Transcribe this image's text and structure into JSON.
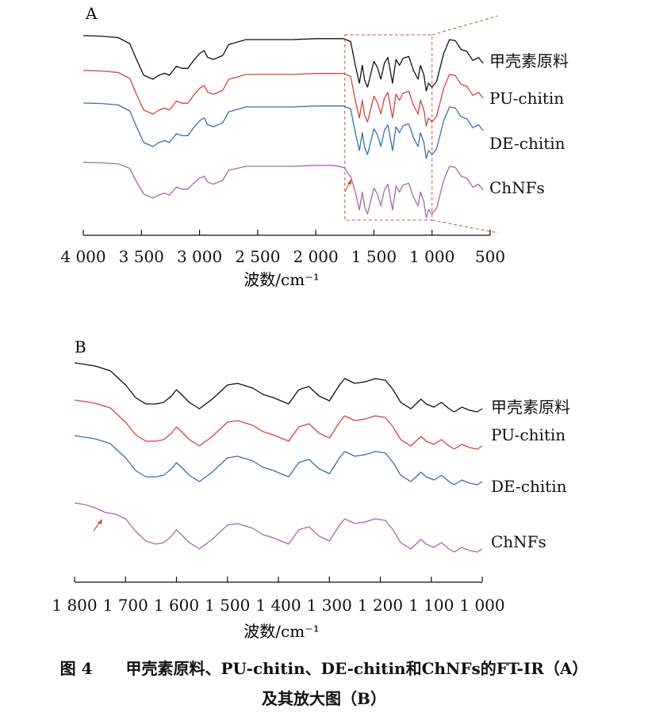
{
  "panels": [
    {
      "label": "A",
      "xlabel": "波数/cm⁻¹",
      "ticks": [
        "4 000",
        "3 500",
        "3 000",
        "2 500",
        "2 000",
        "1 500",
        "1 000",
        "500"
      ],
      "zoom_box": [
        "1 750",
        "1 000"
      ]
    },
    {
      "label": "B",
      "xlabel": "波数/cm⁻¹",
      "ticks": [
        "1 800",
        "1 700",
        "1 600",
        "1 500",
        "1 400",
        "1 300",
        "1 200",
        "1 100",
        "1 000"
      ]
    }
  ],
  "caption": {
    "figure_no": "图 4",
    "line1": "甲壳素原料、PU-chitin、DE-chitin和ChNFs的FT-IR（A）",
    "line2": "及其放大图（B）"
  },
  "colors": {
    "black": "#111111",
    "red": "#d9423c",
    "blue": "#3a6fad",
    "purple": "#a967b3",
    "box": "#e0473f"
  },
  "chart_data": [
    {
      "type": "line",
      "title": "A",
      "xlabel": "波数/cm⁻¹",
      "ylabel": "",
      "xlim": [
        4000,
        500
      ],
      "x_reversed": true,
      "y_axis_shown": false,
      "x_ticks": [
        4000,
        3500,
        3000,
        2500,
        2000,
        1500,
        1000,
        500
      ],
      "highlight_region": [
        1750,
        1000
      ],
      "series": [
        {
          "name": "甲壳素原料",
          "color": "#111111",
          "x": [
            4000,
            3850,
            3700,
            3600,
            3550,
            3480,
            3400,
            3350,
            3300,
            3260,
            3200,
            3150,
            3100,
            3050,
            3000,
            2960,
            2930,
            2880,
            2800,
            2750,
            2600,
            2400,
            2200,
            2000,
            1850,
            1760,
            1700,
            1660,
            1625,
            1600,
            1580,
            1555,
            1500,
            1470,
            1440,
            1410,
            1380,
            1340,
            1310,
            1280,
            1250,
            1200,
            1160,
            1120,
            1100,
            1070,
            1050,
            1030,
            1000,
            960,
            900,
            850,
            800,
            750,
            700,
            650,
            600,
            560
          ],
          "y": [
            0,
            0.5,
            2,
            8,
            22,
            40,
            44,
            40,
            38,
            40,
            31,
            33,
            33,
            25,
            18,
            15,
            22,
            24,
            20,
            9,
            4,
            4,
            4,
            3,
            3,
            3,
            6,
            30,
            48,
            30,
            45,
            52,
            26,
            32,
            44,
            28,
            22,
            48,
            24,
            30,
            23,
            21,
            35,
            44,
            30,
            40,
            56,
            48,
            52,
            46,
            18,
            4,
            5,
            14,
            16,
            25,
            22,
            28
          ]
        },
        {
          "name": "PU-chitin",
          "color": "#d9423c",
          "x": [
            4000,
            3850,
            3700,
            3600,
            3550,
            3480,
            3400,
            3350,
            3300,
            3260,
            3200,
            3150,
            3100,
            3050,
            3000,
            2960,
            2930,
            2880,
            2800,
            2750,
            2600,
            2400,
            2200,
            2000,
            1850,
            1760,
            1700,
            1660,
            1625,
            1600,
            1580,
            1555,
            1500,
            1470,
            1440,
            1410,
            1380,
            1340,
            1310,
            1280,
            1250,
            1200,
            1160,
            1120,
            1100,
            1070,
            1050,
            1030,
            1000,
            960,
            900,
            850,
            800,
            750,
            700,
            650,
            600,
            560
          ],
          "y": [
            0,
            0.5,
            2,
            8,
            22,
            40,
            44,
            40,
            38,
            40,
            31,
            33,
            33,
            25,
            18,
            15,
            22,
            24,
            20,
            9,
            4,
            4,
            4,
            3,
            3,
            3,
            6,
            30,
            48,
            30,
            45,
            52,
            26,
            32,
            44,
            28,
            22,
            48,
            24,
            30,
            23,
            21,
            35,
            44,
            30,
            40,
            56,
            48,
            52,
            46,
            18,
            4,
            5,
            14,
            16,
            25,
            22,
            28
          ]
        },
        {
          "name": "DE-chitin",
          "color": "#3a6fad",
          "x": [
            4000,
            3850,
            3700,
            3600,
            3550,
            3480,
            3400,
            3350,
            3300,
            3260,
            3200,
            3150,
            3100,
            3050,
            3000,
            2960,
            2930,
            2880,
            2800,
            2750,
            2600,
            2400,
            2200,
            2000,
            1850,
            1760,
            1700,
            1660,
            1625,
            1600,
            1580,
            1555,
            1500,
            1470,
            1440,
            1410,
            1380,
            1340,
            1310,
            1280,
            1250,
            1200,
            1160,
            1120,
            1100,
            1070,
            1050,
            1030,
            1000,
            960,
            900,
            850,
            800,
            750,
            700,
            650,
            600,
            560
          ],
          "y": [
            0,
            0.5,
            2,
            8,
            22,
            40,
            44,
            40,
            38,
            40,
            31,
            33,
            33,
            25,
            18,
            15,
            22,
            24,
            20,
            9,
            4,
            4,
            4,
            3,
            3,
            3,
            6,
            30,
            48,
            30,
            45,
            52,
            26,
            32,
            44,
            28,
            22,
            48,
            24,
            30,
            23,
            21,
            35,
            44,
            30,
            40,
            56,
            48,
            52,
            46,
            18,
            4,
            5,
            14,
            16,
            25,
            22,
            28
          ]
        },
        {
          "name": "ChNFs",
          "color": "#a967b3",
          "x": [
            4000,
            3850,
            3700,
            3600,
            3550,
            3480,
            3400,
            3350,
            3300,
            3260,
            3200,
            3150,
            3100,
            3050,
            3000,
            2960,
            2930,
            2880,
            2800,
            2750,
            2600,
            2400,
            2200,
            2000,
            1850,
            1760,
            1740,
            1720,
            1700,
            1660,
            1625,
            1600,
            1580,
            1555,
            1500,
            1470,
            1440,
            1410,
            1380,
            1340,
            1310,
            1280,
            1250,
            1200,
            1160,
            1120,
            1100,
            1070,
            1050,
            1030,
            1000,
            960,
            900,
            850,
            800,
            750,
            700,
            650,
            600,
            560
          ],
          "y": [
            0,
            0.5,
            1.5,
            6,
            18,
            32,
            36,
            33,
            31,
            33,
            25,
            27,
            27,
            21,
            16,
            14,
            20,
            22,
            18,
            8,
            4,
            4,
            4,
            3,
            3,
            5,
            8,
            12,
            14,
            30,
            48,
            30,
            45,
            52,
            26,
            32,
            44,
            28,
            22,
            48,
            24,
            30,
            23,
            21,
            35,
            44,
            30,
            40,
            56,
            48,
            52,
            46,
            18,
            4,
            5,
            14,
            16,
            25,
            22,
            28
          ]
        }
      ]
    },
    {
      "type": "line",
      "title": "B",
      "xlabel": "波数/cm⁻¹",
      "ylabel": "",
      "xlim": [
        1800,
        1000
      ],
      "x_reversed": true,
      "y_axis_shown": false,
      "x_ticks": [
        1800,
        1700,
        1600,
        1500,
        1400,
        1300,
        1200,
        1100,
        1000
      ],
      "series": [
        {
          "name": "甲壳素原料",
          "color": "#111111",
          "x": [
            1800,
            1760,
            1730,
            1700,
            1680,
            1660,
            1640,
            1625,
            1610,
            1600,
            1590,
            1575,
            1555,
            1530,
            1500,
            1480,
            1450,
            1430,
            1410,
            1380,
            1360,
            1340,
            1320,
            1300,
            1280,
            1270,
            1250,
            1230,
            1210,
            1190,
            1175,
            1160,
            1140,
            1120,
            1110,
            1095,
            1080,
            1065,
            1055,
            1040,
            1025,
            1010,
            1000
          ],
          "y": [
            0,
            4,
            10,
            28,
            44,
            52,
            52,
            50,
            42,
            34,
            40,
            50,
            58,
            46,
            28,
            26,
            32,
            40,
            44,
            52,
            34,
            30,
            42,
            48,
            28,
            20,
            26,
            24,
            20,
            22,
            34,
            50,
            58,
            46,
            52,
            56,
            50,
            58,
            62,
            56,
            60,
            62,
            58
          ]
        },
        {
          "name": "PU-chitin",
          "color": "#d9423c",
          "x": [
            1800,
            1760,
            1730,
            1700,
            1680,
            1660,
            1640,
            1625,
            1610,
            1600,
            1590,
            1575,
            1555,
            1530,
            1500,
            1480,
            1450,
            1430,
            1410,
            1380,
            1360,
            1340,
            1320,
            1300,
            1280,
            1270,
            1250,
            1230,
            1210,
            1190,
            1175,
            1160,
            1140,
            1120,
            1110,
            1095,
            1080,
            1065,
            1055,
            1040,
            1025,
            1010,
            1000
          ],
          "y": [
            0,
            4,
            10,
            28,
            44,
            52,
            52,
            50,
            42,
            34,
            40,
            50,
            58,
            46,
            28,
            26,
            32,
            40,
            44,
            52,
            34,
            30,
            42,
            48,
            28,
            20,
            26,
            24,
            20,
            22,
            34,
            50,
            58,
            46,
            52,
            56,
            50,
            58,
            62,
            56,
            60,
            62,
            58
          ]
        },
        {
          "name": "DE-chitin",
          "color": "#3a6fad",
          "x": [
            1800,
            1760,
            1730,
            1700,
            1680,
            1660,
            1640,
            1625,
            1610,
            1600,
            1590,
            1575,
            1555,
            1530,
            1500,
            1480,
            1450,
            1430,
            1410,
            1380,
            1360,
            1340,
            1320,
            1300,
            1280,
            1270,
            1250,
            1230,
            1210,
            1190,
            1175,
            1160,
            1140,
            1120,
            1110,
            1095,
            1080,
            1065,
            1055,
            1040,
            1025,
            1010,
            1000
          ],
          "y": [
            0,
            4,
            10,
            28,
            44,
            52,
            52,
            50,
            42,
            34,
            40,
            50,
            58,
            46,
            28,
            26,
            32,
            40,
            44,
            52,
            34,
            30,
            42,
            48,
            28,
            20,
            26,
            24,
            20,
            22,
            34,
            50,
            58,
            46,
            52,
            56,
            50,
            58,
            62,
            56,
            60,
            62,
            58
          ]
        },
        {
          "name": "ChNFs",
          "color": "#a967b3",
          "x": [
            1800,
            1780,
            1760,
            1740,
            1720,
            1700,
            1680,
            1660,
            1640,
            1625,
            1610,
            1600,
            1590,
            1575,
            1555,
            1530,
            1500,
            1480,
            1450,
            1430,
            1410,
            1380,
            1360,
            1340,
            1320,
            1300,
            1280,
            1270,
            1250,
            1230,
            1210,
            1190,
            1175,
            1160,
            1140,
            1120,
            1110,
            1095,
            1080,
            1065,
            1055,
            1040,
            1025,
            1010,
            1000
          ],
          "y": [
            0,
            2,
            6,
            12,
            14,
            20,
            36,
            48,
            52,
            50,
            42,
            34,
            40,
            50,
            58,
            46,
            28,
            26,
            32,
            40,
            44,
            52,
            34,
            30,
            42,
            48,
            28,
            20,
            26,
            24,
            20,
            22,
            34,
            50,
            58,
            46,
            52,
            56,
            50,
            58,
            62,
            56,
            60,
            62,
            58
          ]
        }
      ]
    }
  ]
}
